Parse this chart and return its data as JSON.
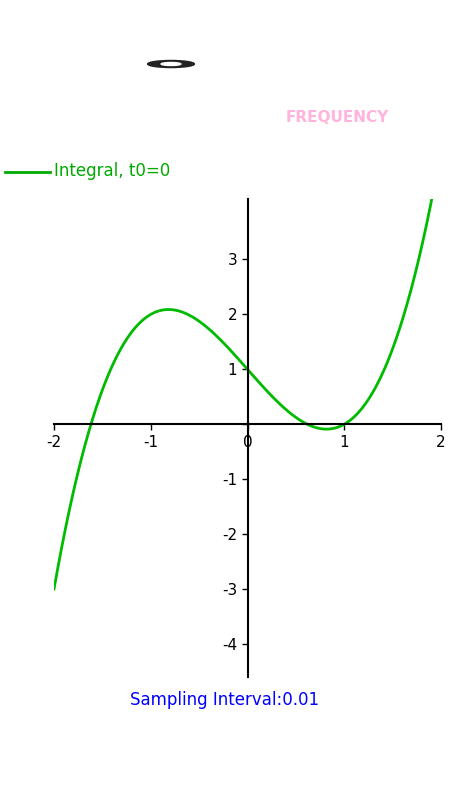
{
  "status_bar_color": "#2196F3",
  "toolbar_color": "#2196F3",
  "tab_bar_color": "#CC0099",
  "content_bg": "#FFFFFF",
  "legend_text": "Integral, t0=0",
  "legend_color": "#00AA00",
  "curve_color": "#00BB00",
  "sampling_text": "Sampling Interval:0.01",
  "sampling_color": "#0000FF",
  "xlim": [
    -2,
    2
  ],
  "xticks": [
    -2,
    -1,
    0,
    1,
    2
  ],
  "yticks": [
    -4,
    -3,
    -2,
    -1,
    0,
    1,
    2,
    3
  ],
  "nav_bar_color": "#000000"
}
